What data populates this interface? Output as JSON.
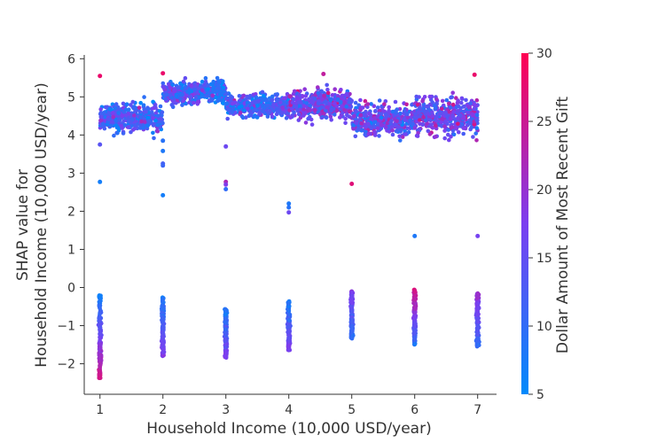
{
  "chart_data": {
    "type": "scatter",
    "title": "",
    "xlabel": "Household Income (10,000 USD/year)",
    "ylabel": [
      "SHAP value for",
      "Household Income (10,000 USD/year)"
    ],
    "xlim": [
      0.75,
      7.3
    ],
    "ylim": [
      -2.8,
      6.1
    ],
    "x_ticks": [
      1,
      2,
      3,
      4,
      5,
      6,
      7
    ],
    "x_tick_labels": [
      "1",
      "2",
      "3",
      "4",
      "5",
      "6",
      "7"
    ],
    "y_ticks": [
      -2,
      -1,
      0,
      1,
      2,
      3,
      4,
      5,
      6
    ],
    "y_tick_labels": [
      "−2",
      "−1",
      "0",
      "1",
      "2",
      "3",
      "4",
      "5",
      "6"
    ],
    "grid": false,
    "colorbar": {
      "label": "Dollar Amount of Most Recent Gift",
      "range": [
        5,
        30
      ],
      "ticks": [
        5,
        10,
        15,
        20,
        25,
        30
      ],
      "tick_labels": [
        "5",
        "10",
        "15",
        "20",
        "25",
        "30"
      ],
      "colors": [
        "#008afb",
        "#7b3ff0",
        "#ff0052"
      ]
    },
    "series": [
      {
        "segments": [
          {
            "x_range": [
              1.0,
              2.0
            ],
            "y_center": 4.45,
            "y_spread": 0.38,
            "color_mean": 12
          },
          {
            "x_range": [
              2.0,
              2.6
            ],
            "y_center": 5.1,
            "y_spread": 0.3,
            "color_mean": 13
          },
          {
            "x_range": [
              2.6,
              3.0
            ],
            "y_center": 5.15,
            "y_spread": 0.32,
            "color_mean": 10
          },
          {
            "x_range": [
              3.0,
              4.0
            ],
            "y_center": 4.75,
            "y_spread": 0.3,
            "color_mean": 12
          },
          {
            "x_range": [
              4.0,
              5.0
            ],
            "y_center": 4.8,
            "y_spread": 0.38,
            "color_mean": 17
          },
          {
            "x_range": [
              5.0,
              6.0
            ],
            "y_center": 4.4,
            "y_spread": 0.42,
            "color_mean": 15
          },
          {
            "x_range": [
              6.0,
              7.0
            ],
            "y_center": 4.5,
            "y_spread": 0.5,
            "color_mean": 16
          }
        ],
        "columns": [
          {
            "x": 1,
            "y_min": -2.4,
            "y_max": -0.2,
            "color_low_y": 26,
            "color_high_y": 7
          },
          {
            "x": 2,
            "y_min": -1.8,
            "y_max": -0.25,
            "color_low_y": 18,
            "color_high_y": 8
          },
          {
            "x": 3,
            "y_min": -1.85,
            "y_max": -0.55,
            "color_low_y": 18,
            "color_high_y": 8
          },
          {
            "x": 4,
            "y_min": -1.65,
            "y_max": -0.35,
            "color_low_y": 18,
            "color_high_y": 8
          },
          {
            "x": 5,
            "y_min": -1.35,
            "y_max": -0.1,
            "color_low_y": 9,
            "color_high_y": 18
          },
          {
            "x": 6,
            "y_min": -1.5,
            "y_max": -0.05,
            "color_low_y": 9,
            "color_high_y": 26
          },
          {
            "x": 7,
            "y_min": -1.55,
            "y_max": -0.15,
            "color_low_y": 10,
            "color_high_y": 20
          }
        ],
        "outliers": [
          {
            "x": 1,
            "y": 5.55,
            "c": 28
          },
          {
            "x": 1,
            "y": 3.75,
            "c": 14
          },
          {
            "x": 1,
            "y": 2.77,
            "c": 7
          },
          {
            "x": 2,
            "y": 3.85,
            "c": 9
          },
          {
            "x": 2,
            "y": 3.58,
            "c": 8
          },
          {
            "x": 2,
            "y": 3.25,
            "c": 12
          },
          {
            "x": 2,
            "y": 3.2,
            "c": 11
          },
          {
            "x": 2,
            "y": 2.42,
            "c": 7
          },
          {
            "x": 2,
            "y": 5.62,
            "c": 28
          },
          {
            "x": 3,
            "y": 3.7,
            "c": 16
          },
          {
            "x": 3,
            "y": 2.77,
            "c": 22
          },
          {
            "x": 3,
            "y": 2.7,
            "c": 18
          },
          {
            "x": 3,
            "y": 2.58,
            "c": 10
          },
          {
            "x": 4,
            "y": 2.2,
            "c": 8
          },
          {
            "x": 4,
            "y": 2.1,
            "c": 9
          },
          {
            "x": 4,
            "y": 1.97,
            "c": 16
          },
          {
            "x": 5,
            "y": 2.72,
            "c": 27
          },
          {
            "x": 6,
            "y": 1.35,
            "c": 8
          },
          {
            "x": 7,
            "y": 1.35,
            "c": 17
          },
          {
            "x": 4.55,
            "y": 5.6,
            "c": 24
          },
          {
            "x": 6.95,
            "y": 5.58,
            "c": 28
          }
        ]
      }
    ]
  }
}
